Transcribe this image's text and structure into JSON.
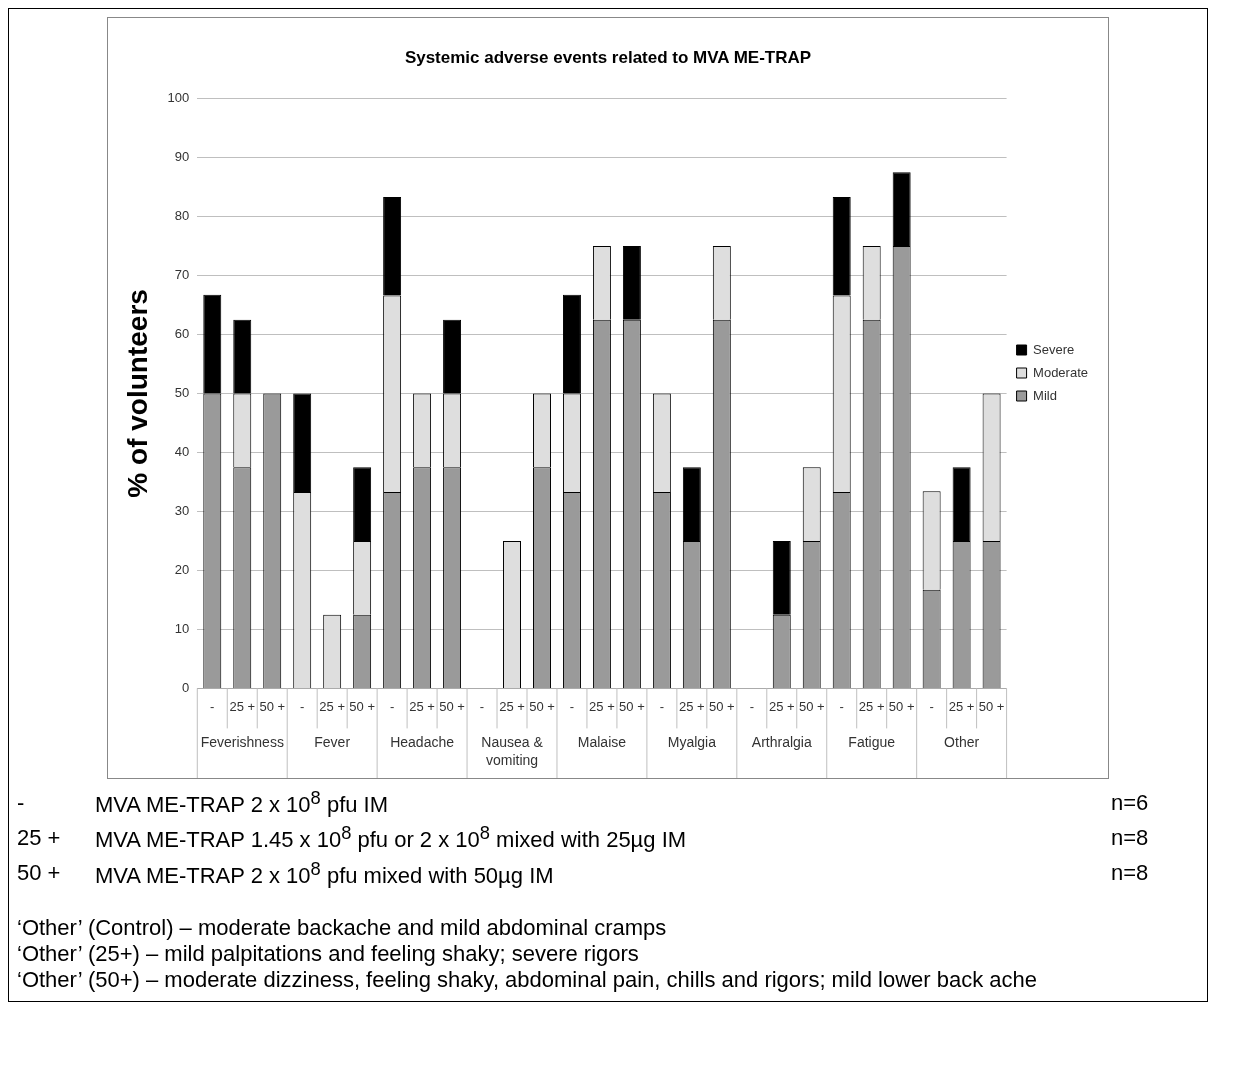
{
  "chart_data": {
    "type": "bar",
    "title": "Systemic adverse events related to MVA ME-TRAP",
    "ylabel": "% of volunteers",
    "stacked": true,
    "grid": "y",
    "legend": "right",
    "categories": [
      "-",
      "25 +",
      "50 +",
      "-",
      "25 +",
      "50 +",
      "-",
      "25 +",
      "50 +",
      "-",
      "25 +",
      "50 +",
      "-",
      "25 +",
      "50 +",
      "-",
      "25 +",
      "50 +",
      "-",
      "25 +",
      "50 +",
      "-",
      "25 +",
      "50 +",
      "-",
      "25 +",
      "50 +"
    ],
    "ylim": [
      0,
      100
    ],
    "yticks": [
      0,
      10,
      20,
      30,
      40,
      50,
      60,
      70,
      80,
      90,
      100
    ],
    "series": [
      {
        "name": "Mild",
        "color": "#9a9a9a",
        "values": [
          50,
          37.5,
          50,
          0,
          0,
          12.5,
          33.3,
          37.5,
          37.5,
          0,
          0,
          37.5,
          33.3,
          62.5,
          62.5,
          33.3,
          25,
          62.5,
          0,
          12.5,
          25,
          33.3,
          62.5,
          75,
          16.7,
          25,
          25
        ]
      },
      {
        "name": "Moderate",
        "color": "#dedede",
        "values": [
          0,
          12.5,
          0,
          33.3,
          12.5,
          12.5,
          33.3,
          12.5,
          12.5,
          0,
          25,
          12.5,
          16.7,
          12.5,
          0,
          16.7,
          0,
          12.5,
          0,
          0,
          12.5,
          33.3,
          12.5,
          0,
          16.7,
          0,
          25
        ]
      },
      {
        "name": "Severe",
        "color": "#000000",
        "values": [
          16.7,
          12.5,
          0,
          16.7,
          0,
          12.5,
          16.7,
          0,
          12.5,
          0,
          0,
          0,
          16.7,
          0,
          12.5,
          0,
          12.5,
          0,
          0,
          12.5,
          0,
          16.7,
          0,
          12.5,
          0,
          12.5,
          0
        ]
      }
    ],
    "annotations": [
      "Feverishness",
      "Fever",
      "Headache",
      "Nausea & vomiting",
      "Malaise",
      "Myalgia",
      "Arthralgia",
      "Fatigue",
      "Other",
      "-",
      "MVA ME-TRAP 2 x 10$^{8}$ pfu IM",
      "n=6",
      "25 +",
      "MVA ME-TRAP 1.45 x 10$^{8}$ pfu or 2 x 10$^{8}$ mixed with 25µg IM",
      "n=8",
      "50 +",
      "MVA ME-TRAP 2 x 10$^{8}$ pfu mixed with 50µg IM",
      "n=8",
      "‘Other’ (Control) – moderate backache and mild abdominal cramps",
      "‘Other’ (25+) – mild palpitations and feeling shaky; severe rigors",
      "‘Other’ (50+) – moderate dizziness, feeling shaky, abdominal pain, chills and rigors; mild lower back ache"
    ]
  }
}
